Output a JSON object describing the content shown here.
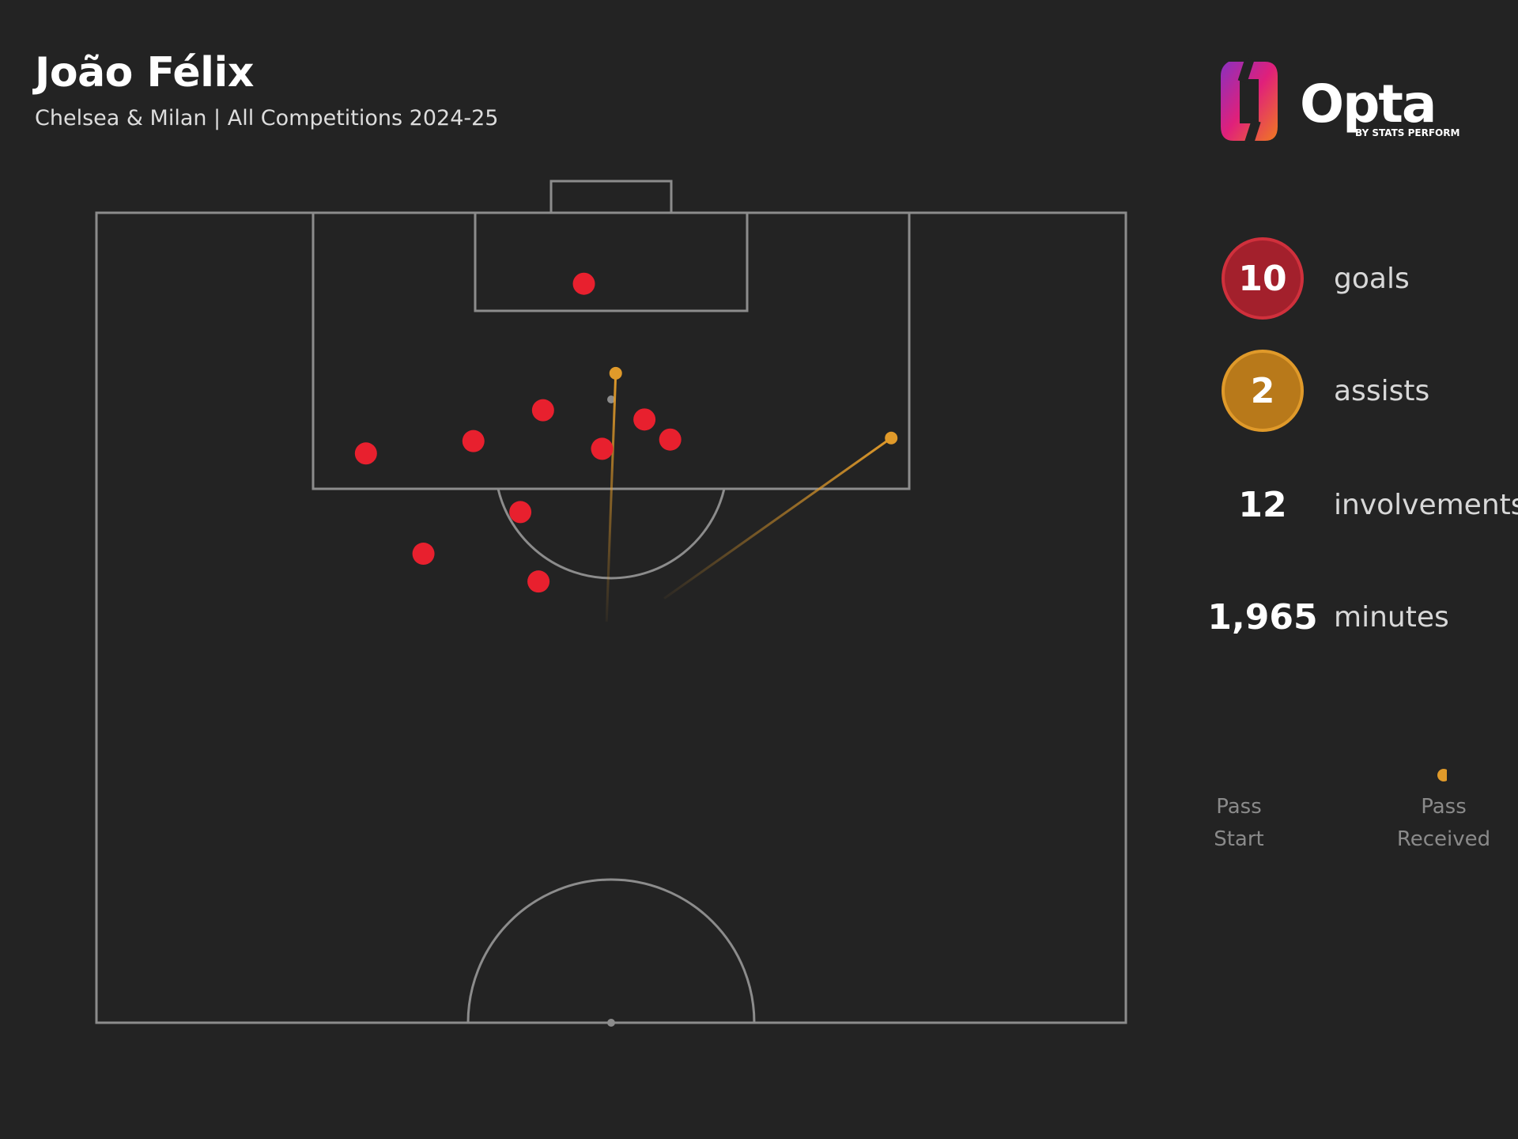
{
  "header": {
    "title": "João Félix",
    "subtitle": "Chelsea & Milan | All Competitions 2024-25"
  },
  "logo": {
    "text": "Opta",
    "tagline": "BY STATS PERFORM",
    "colors": [
      "#e0207a",
      "#f07a20",
      "#8a30c0"
    ]
  },
  "stats": {
    "goals": {
      "value": "10",
      "label": "goals",
      "color": "#a3202c"
    },
    "assists": {
      "value": "2",
      "label": "assists",
      "color": "#b8791a"
    },
    "involvements": {
      "value": "12",
      "label": "involvements"
    },
    "minutes": {
      "value": "1,965",
      "label": "minutes"
    }
  },
  "legend": {
    "start_label": "Pass\nStart",
    "end_label": "Pass\nReceived"
  },
  "colors": {
    "background": "#232323",
    "pitch_lines": "#8c8c8c",
    "goal_marker": "#e8202e",
    "assist_marker": "#e09a2a"
  },
  "chart_data": {
    "type": "scatter",
    "units": "pitch metres, x = width (0-68, left to right), y = distance from goal line (0-52.5 = half pitch)",
    "goals": [
      {
        "x": 32.2,
        "y": 4.6
      },
      {
        "x": 17.8,
        "y": 15.6
      },
      {
        "x": 24.9,
        "y": 14.8
      },
      {
        "x": 29.5,
        "y": 12.8
      },
      {
        "x": 33.4,
        "y": 15.3
      },
      {
        "x": 36.2,
        "y": 13.4
      },
      {
        "x": 37.9,
        "y": 14.7
      },
      {
        "x": 28.0,
        "y": 19.4
      },
      {
        "x": 21.6,
        "y": 22.1
      },
      {
        "x": 29.2,
        "y": 23.9
      }
    ],
    "assists": [
      {
        "start": {
          "x": 33.7,
          "y": 26.5
        },
        "end": {
          "x": 34.3,
          "y": 10.4
        }
      },
      {
        "start": {
          "x": 37.5,
          "y": 25.0
        },
        "end": {
          "x": 52.5,
          "y": 14.6
        }
      }
    ]
  }
}
